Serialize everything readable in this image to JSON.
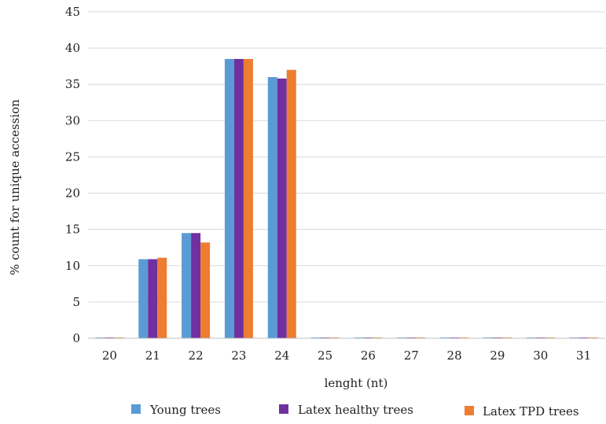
{
  "chart_data": {
    "type": "bar",
    "title": "",
    "xlabel": "lenght (nt)",
    "ylabel": "% count for unique accession",
    "ylim": [
      0,
      45
    ],
    "yticks": [
      0,
      5,
      10,
      15,
      20,
      25,
      30,
      35,
      40,
      45
    ],
    "grid": true,
    "legend_position": "bottom",
    "categories": [
      "20",
      "21",
      "22",
      "23",
      "24",
      "25",
      "26",
      "27",
      "28",
      "29",
      "30",
      "31"
    ],
    "series": [
      {
        "name": "Young trees",
        "color": "#5B9BD5",
        "values": [
          0.1,
          10.9,
          14.5,
          38.5,
          36.0,
          0.1,
          0.1,
          0.1,
          0.1,
          0.1,
          0.1,
          0.1
        ]
      },
      {
        "name": "Latex healthy trees",
        "color": "#7030A0",
        "values": [
          0.1,
          10.9,
          14.5,
          38.5,
          35.8,
          0.1,
          0.1,
          0.1,
          0.1,
          0.1,
          0.1,
          0.1
        ]
      },
      {
        "name": "Latex TPD trees",
        "color": "#ED7D31",
        "values": [
          0.1,
          11.1,
          13.2,
          38.5,
          37.0,
          0.1,
          0.1,
          0.1,
          0.1,
          0.1,
          0.1,
          0.1
        ]
      }
    ]
  }
}
